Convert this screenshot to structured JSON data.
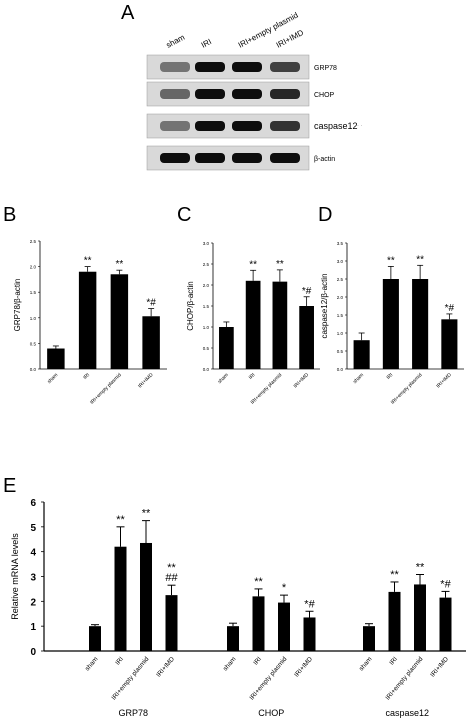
{
  "panel_letters": {
    "A": "A",
    "B": "B",
    "C": "C",
    "D": "D",
    "E": "E"
  },
  "blot": {
    "lanes": [
      "sham",
      "IRI",
      "IRI+empty plasmid",
      "IRI+IMD"
    ],
    "bands": [
      {
        "label": "GRP78",
        "intensity": [
          0.55,
          0.95,
          0.95,
          0.75
        ]
      },
      {
        "label": "CHOP",
        "intensity": [
          0.6,
          0.95,
          0.95,
          0.85
        ]
      },
      {
        "label": "caspase12",
        "intensity": [
          0.55,
          0.95,
          0.95,
          0.8
        ]
      },
      {
        "label": "β-actin",
        "intensity": [
          0.95,
          0.95,
          0.95,
          0.95
        ]
      }
    ],
    "stray_mark": "· ·"
  },
  "chart_data": [
    {
      "type": "bar",
      "panel": "B",
      "categories": [
        "sham",
        "IRI",
        "IRI+empty plasmid",
        "IRI+IMD"
      ],
      "values": [
        0.4,
        1.9,
        1.85,
        1.03
      ],
      "errors": [
        0.05,
        0.1,
        0.08,
        0.15
      ],
      "annotations": [
        "",
        "**",
        "**",
        "*#"
      ],
      "ylabel": "GRP78/β-actin",
      "ylim": [
        0,
        2.5
      ],
      "yticks": [
        "0.0",
        "0.5",
        "1.0",
        "1.5",
        "2.0",
        "2.5"
      ],
      "ytick_values": [
        0,
        0.5,
        1.0,
        1.5,
        2.0,
        2.5
      ]
    },
    {
      "type": "bar",
      "panel": "C",
      "categories": [
        "sham",
        "IRI",
        "IRI+empty plasmid",
        "IRI+IMD"
      ],
      "values": [
        1.0,
        2.1,
        2.08,
        1.5
      ],
      "errors": [
        0.12,
        0.25,
        0.28,
        0.22
      ],
      "annotations": [
        "",
        "**",
        "**",
        "*#"
      ],
      "ylabel": "CHOP/β-actin",
      "ylim": [
        0,
        3.0
      ],
      "yticks": [
        "0.0",
        "0.5",
        "1.0",
        "1.5",
        "2.0",
        "2.5",
        "3.0"
      ],
      "ytick_values": [
        0,
        0.5,
        1.0,
        1.5,
        2.0,
        2.5,
        3.0
      ]
    },
    {
      "type": "bar",
      "panel": "D",
      "categories": [
        "sham",
        "IRI",
        "IRI+empty plasmid",
        "IRI+IMD"
      ],
      "values": [
        0.8,
        2.5,
        2.5,
        1.38
      ],
      "errors": [
        0.2,
        0.35,
        0.38,
        0.15
      ],
      "annotations": [
        "",
        "**",
        "**",
        "*#"
      ],
      "ylabel": "caspase12/β-actin",
      "ylim": [
        0,
        3.5
      ],
      "yticks": [
        "0.0",
        "0.5",
        "1.0",
        "1.5",
        "2.0",
        "2.5",
        "3.0",
        "3.5"
      ],
      "ytick_values": [
        0,
        0.5,
        1.0,
        1.5,
        2.0,
        2.5,
        3.0,
        3.5
      ]
    },
    {
      "type": "bar",
      "panel": "E",
      "groups": [
        "GRP78",
        "CHOP",
        "caspase12"
      ],
      "categories": [
        "sham",
        "IRI",
        "IRI+empty plasmid",
        "IRI+IMD"
      ],
      "series": [
        {
          "group": "GRP78",
          "values": [
            1.0,
            4.2,
            4.35,
            2.25
          ],
          "errors": [
            0.06,
            0.8,
            0.9,
            0.4
          ],
          "annotations": [
            "",
            "**",
            "**",
            "**\n##"
          ]
        },
        {
          "group": "CHOP",
          "values": [
            1.0,
            2.2,
            1.95,
            1.35
          ],
          "errors": [
            0.12,
            0.3,
            0.3,
            0.25
          ],
          "annotations": [
            "",
            "**",
            "*",
            "*#"
          ]
        },
        {
          "group": "caspase12",
          "values": [
            1.0,
            2.38,
            2.68,
            2.15
          ],
          "errors": [
            0.1,
            0.4,
            0.4,
            0.25
          ],
          "annotations": [
            "",
            "**",
            "**",
            "*#"
          ]
        }
      ],
      "ylabel": "Relative mRNA levels",
      "ylim": [
        0,
        6
      ],
      "yticks": [
        "0",
        "1",
        "2",
        "3",
        "4",
        "5",
        "6"
      ],
      "ytick_values": [
        0,
        1,
        2,
        3,
        4,
        5,
        6
      ]
    }
  ]
}
